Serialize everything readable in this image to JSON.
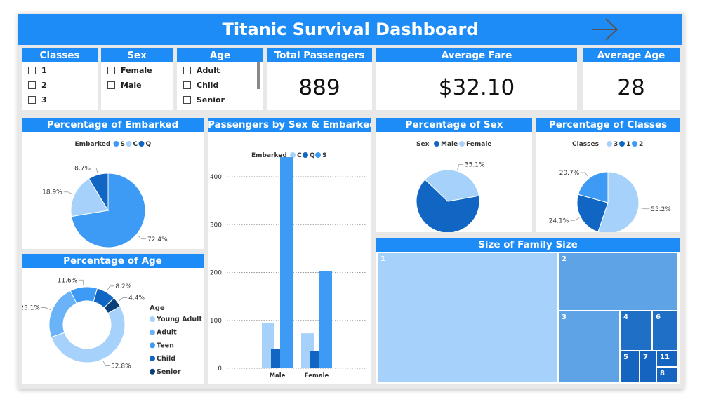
{
  "title": "Titanic Survival Dashboard",
  "slicers": {
    "classes": {
      "title": "Classes",
      "items": [
        "1",
        "2",
        "3"
      ]
    },
    "sex": {
      "title": "Sex",
      "items": [
        "Female",
        "Male"
      ]
    },
    "age": {
      "title": "Age",
      "items": [
        "Adult",
        "Child",
        "Senior"
      ]
    }
  },
  "kpis": {
    "total": {
      "title": "Total Passengers",
      "value": "889"
    },
    "fare": {
      "title": "Average Fare",
      "value": "$32.10"
    },
    "age": {
      "title": "Average Age",
      "value": "28"
    }
  },
  "colors": {
    "accent": "#1e8cf7",
    "light": "#a6d1fa",
    "mid": "#3d9bf5",
    "dark": "#1166c4",
    "darkest": "#0b3f7a"
  },
  "chart_data": [
    {
      "id": "embarked",
      "type": "pie",
      "title": "Percentage of Embarked",
      "legend_title": "Embarked",
      "legend": [
        "S",
        "C",
        "Q"
      ],
      "slices": [
        {
          "name": "S",
          "value": 72.4,
          "label": "72.4%",
          "color": "#3d9bf5"
        },
        {
          "name": "C",
          "value": 18.9,
          "label": "18.9%",
          "color": "#a6d1fa"
        },
        {
          "name": "Q",
          "value": 8.7,
          "label": "8.7%",
          "color": "#1166c4"
        }
      ]
    },
    {
      "id": "sexembarked",
      "type": "bar",
      "title": "Passengers by Sex & Embarked",
      "legend_title": "Embarked",
      "categories": [
        "Male",
        "Female"
      ],
      "series": [
        {
          "name": "C",
          "values": [
            95,
            73
          ],
          "color": "#a6d1fa"
        },
        {
          "name": "Q",
          "values": [
            41,
            36
          ],
          "color": "#1166c4"
        },
        {
          "name": "S",
          "values": [
            441,
            203
          ],
          "color": "#3d9bf5"
        }
      ],
      "yticks": [
        "0",
        "100",
        "200",
        "300",
        "400"
      ],
      "ylim": [
        0,
        460
      ]
    },
    {
      "id": "sex",
      "type": "pie",
      "title": "Percentage of Sex",
      "legend_title": "Sex",
      "slices": [
        {
          "name": "Male",
          "value": 64.9,
          "label": "64.9%",
          "color": "#1166c4"
        },
        {
          "name": "Female",
          "value": 35.1,
          "label": "35.1%",
          "color": "#a6d1fa"
        }
      ]
    },
    {
      "id": "classes",
      "type": "pie",
      "title": "Percentage of Classes",
      "legend_title": "Classes",
      "slices": [
        {
          "name": "3",
          "value": 55.2,
          "label": "55.2%",
          "color": "#a6d1fa"
        },
        {
          "name": "1",
          "value": 24.1,
          "label": "24.1%",
          "color": "#1166c4"
        },
        {
          "name": "2",
          "value": 20.7,
          "label": "20.7%",
          "color": "#3d9bf5"
        }
      ]
    },
    {
      "id": "age",
      "type": "pie",
      "title": "Percentage of Age",
      "legend_title": "Age",
      "slices": [
        {
          "name": "Young Adult",
          "value": 52.8,
          "label": "52.8%",
          "color": "#a6d1fa"
        },
        {
          "name": "Adult",
          "value": 23.1,
          "label": "23.1%",
          "color": "#6ab3f8"
        },
        {
          "name": "Teen",
          "value": 11.6,
          "label": "11.6%",
          "color": "#3d9bf5"
        },
        {
          "name": "Child",
          "value": 8.2,
          "label": "8.2%",
          "color": "#1166c4"
        },
        {
          "name": "Senior",
          "value": 4.4,
          "label": "4.4%",
          "color": "#0b3f7a"
        }
      ]
    },
    {
      "id": "family",
      "type": "treemap",
      "title": "Size of Family Size",
      "tiles": [
        "1",
        "2",
        "3",
        "4",
        "6",
        "5",
        "7",
        "11",
        "8"
      ]
    }
  ]
}
